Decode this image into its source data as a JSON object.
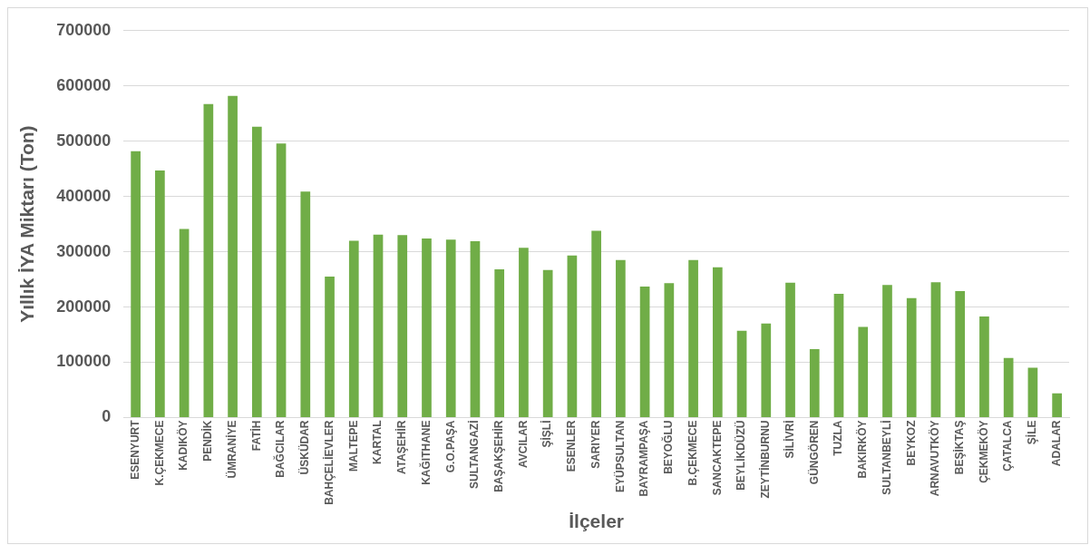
{
  "chart_data": {
    "type": "bar",
    "xlabel": "İlçeler",
    "ylabel": "Yıllık İYA Miktarı (Ton)",
    "categories": [
      "ESENYURT",
      "K.ÇEKMECE",
      "KADIKÖY",
      "PENDİK",
      "ÜMRANİYE",
      "FATİH",
      "BAĞCILAR",
      "ÜSKÜDAR",
      "BAHÇELİEVLER",
      "MALTEPE",
      "KARTAL",
      "ATAŞEHİR",
      "KAĞITHANE",
      "G.O.PAŞA",
      "SULTANGAZİ",
      "BAŞAKŞEHİR",
      "AVCILAR",
      "ŞİŞLİ",
      "ESENLER",
      "SARIYER",
      "EYÜPSULTAN",
      "BAYRAMPAŞA",
      "BEYOĞLU",
      "B.ÇEKMECE",
      "SANCAKTEPE",
      "BEYLİKDÜZÜ",
      "ZEYTİNBURNU",
      "SİLİVRİ",
      "GÜNGÖREN",
      "TUZLA",
      "BAKIRKÖY",
      "SULTANBEYLİ",
      "BEYKOZ",
      "ARNAVUTKÖY",
      "BEŞİKTAŞ",
      "ÇEKMEKÖY",
      "ÇATALCA",
      "ŞİLE",
      "ADALAR"
    ],
    "values": [
      482000,
      447000,
      341000,
      567000,
      582000,
      526000,
      496000,
      409000,
      255000,
      320000,
      331000,
      330000,
      324000,
      322000,
      319000,
      268000,
      307000,
      267000,
      293000,
      338000,
      285000,
      237000,
      243000,
      285000,
      272000,
      157000,
      170000,
      244000,
      124000,
      224000,
      164000,
      240000,
      216000,
      245000,
      229000,
      183000,
      108000,
      90000,
      44000
    ],
    "color": "#70ad47",
    "ylim": [
      0,
      700000
    ],
    "yticks": [
      0,
      100000,
      200000,
      300000,
      400000,
      500000,
      600000,
      700000
    ],
    "grid": "y",
    "legend": false
  }
}
